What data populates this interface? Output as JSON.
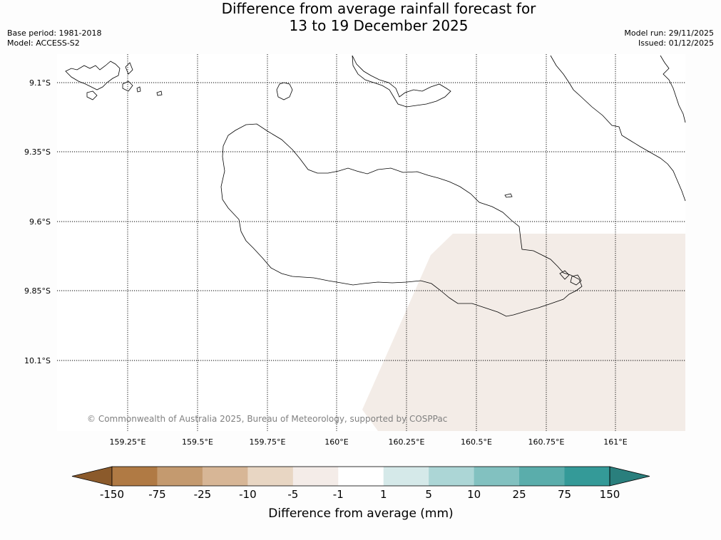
{
  "title": {
    "line1": "Difference from average rainfall forecast for",
    "line2": "13 to 19 December 2025"
  },
  "meta_left": {
    "base_period": "Base period: 1981-2018",
    "model": "Model: ACCESS-S2"
  },
  "meta_right": {
    "model_run": "Model run: 29/11/2025",
    "issued": "Issued: 01/12/2025"
  },
  "map": {
    "lat_labels": [
      "9.1°S",
      "9.35°S",
      "9.6°S",
      "9.85°S",
      "10.1°S"
    ],
    "lon_labels": [
      "159.25°E",
      "159.5°E",
      "159.75°E",
      "160°E",
      "160.25°E",
      "160.5°E",
      "160.75°E",
      "161°E"
    ],
    "copyright": "© Commonwealth of Australia 2025, Bureau of Meteorology, supported by COSPPac",
    "forecast_region_category": "-5 to -1",
    "forecast_region_color": "#f3ece7"
  },
  "colorbar": {
    "label": "Difference from average (mm)",
    "tick_labels": [
      "-150",
      "-75",
      "-25",
      "-10",
      "-5",
      "-1",
      "1",
      "5",
      "10",
      "25",
      "75",
      "150"
    ],
    "colors": [
      "#8b5a2b",
      "#b07a44",
      "#c49a6f",
      "#d7b696",
      "#e8d6c3",
      "#f4ece8",
      "#ffffff",
      "#d5e9e9",
      "#acd6d6",
      "#82c1c0",
      "#5aadab",
      "#349a98",
      "#2a7f7d"
    ]
  }
}
